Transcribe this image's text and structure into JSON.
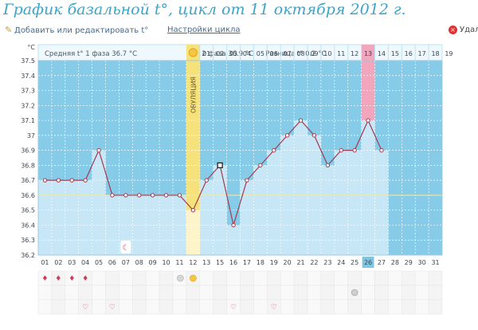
{
  "page": {
    "title": "График базальной t°, цикл от 11 октября 2012 г.",
    "edit_label": "Добавить или редактировать t°",
    "settings_label": "Настройки цикла",
    "delete_label": "Удал"
  },
  "colors": {
    "phase1_bg": "#c8e7f6",
    "phase2_bg": "#86cce9",
    "ovulation": "#f6e27a",
    "line": "#a13a52",
    "highlight_day": "#f2a6bd",
    "header_bg": "#eef8fd"
  },
  "chart_data": {
    "type": "line",
    "ylabel": "°C",
    "ylim": [
      36.2,
      37.5
    ],
    "y_ticks": [
      "36.2",
      "36.3",
      "36.4",
      "36.5",
      "36.6",
      "36.7",
      "36.8",
      "36.9",
      "37",
      "37.1",
      "37.2",
      "37.3",
      "37.4",
      "37.5"
    ],
    "x_labels": [
      "01",
      "02",
      "03",
      "04",
      "05",
      "06",
      "07",
      "08",
      "09",
      "10",
      "11",
      "12",
      "13",
      "15",
      "16",
      "17",
      "18",
      "19",
      "20",
      "21",
      "22",
      "23",
      "24",
      "25",
      "26",
      "27",
      "28",
      "29",
      "30",
      "31"
    ],
    "values": [
      36.7,
      36.7,
      36.7,
      36.7,
      36.9,
      36.6,
      36.6,
      36.6,
      36.6,
      36.6,
      36.6,
      36.5,
      36.7,
      36.8,
      36.4,
      36.7,
      36.8,
      36.9,
      37.0,
      37.1,
      37.0,
      36.8,
      36.9,
      36.9,
      37.1,
      36.9
    ],
    "coverline": 36.6,
    "ovulation_label": "ОВУЛЯЦИЯ",
    "ovulation_day": "12",
    "current_day": "26",
    "highlight_phase_day": "13",
    "selected_day": "15",
    "phase1_text": "Средняя t° 1 фаза 36.7 °C",
    "phase2_text": "2 фаза 36.9 °C",
    "diff_text": "Разница t° 0.2 °C",
    "phase2_days": [
      "01",
      "02",
      "03",
      "04",
      "05",
      "06",
      "07",
      "08",
      "09",
      "10",
      "11",
      "12",
      "13",
      "14",
      "15",
      "16",
      "17",
      "18",
      "19"
    ],
    "moon_day": "07",
    "drop_days": [
      "01",
      "02",
      "03",
      "04"
    ],
    "heart_days": [
      "04",
      "06",
      "16",
      "19"
    ],
    "note_days": [
      "12"
    ],
    "sun_days": [
      "12"
    ],
    "test_days": [
      "25"
    ]
  }
}
